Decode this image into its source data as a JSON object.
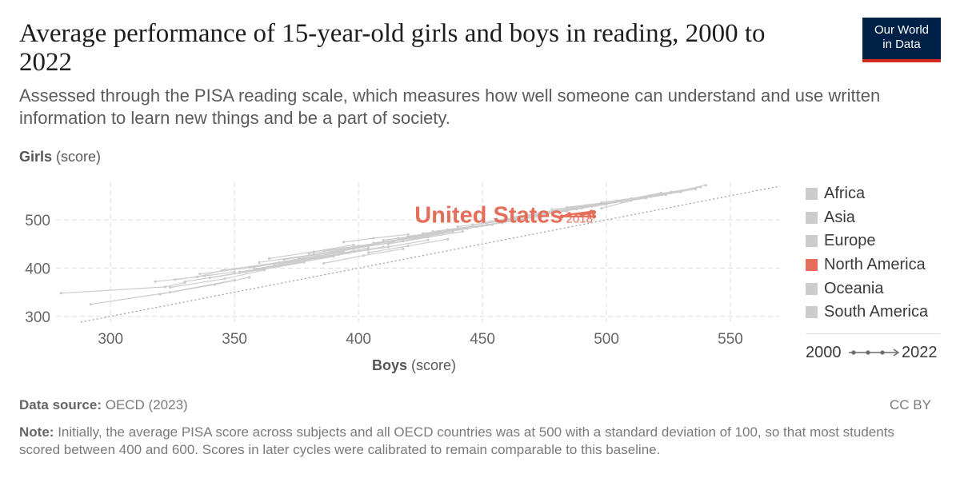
{
  "title": "Average performance of 15-year-old girls and boys in reading, 2000 to 2022",
  "subtitle": "Assessed through the PISA reading scale, which measures how well someone can understand and use written information to learn new things and be a part of society.",
  "logo": {
    "line1": "Our World",
    "line2": "in Data"
  },
  "y_axis": {
    "label_bold": "Girls",
    "label_unit": "(score)"
  },
  "x_axis": {
    "label_bold": "Boys",
    "label_unit": "(score)"
  },
  "legend": [
    {
      "label": "Africa",
      "color": "#cccccc"
    },
    {
      "label": "Asia",
      "color": "#cccccc"
    },
    {
      "label": "Europe",
      "color": "#cccccc"
    },
    {
      "label": "North America",
      "color": "#e56e5a"
    },
    {
      "label": "Oceania",
      "color": "#cccccc"
    },
    {
      "label": "South America",
      "color": "#cccccc"
    }
  ],
  "time_legend": {
    "start": "2000",
    "end": "2022"
  },
  "footer": {
    "source_label": "Data source:",
    "source_text": "OECD (2023)",
    "license": "CC BY",
    "note_label": "Note:",
    "note_text": "Initially, the average PISA score across subjects and all OECD countries was at 500 with a standard deviation of 100, so that most students scored between 400 and 600. Scores in later cycles were calibrated to remain comparable to this baseline."
  },
  "colors": {
    "highlight": "#e56e5a",
    "background_series": "#cccccc",
    "grid": "#dddddd"
  },
  "chart_data": {
    "type": "scatter",
    "xlabel": "Boys (score)",
    "ylabel": "Girls (score)",
    "xlim": [
      278,
      570
    ],
    "ylim": [
      288,
      578
    ],
    "x_ticks": [
      300,
      350,
      400,
      450,
      500,
      550
    ],
    "y_ticks": [
      300,
      400,
      500
    ],
    "grid": true,
    "legend_position": "right",
    "reference_line": "y = x",
    "highlight": {
      "name": "United States",
      "region": "North America",
      "end_label": "2018",
      "points": [
        {
          "x": 490,
          "y": 510
        },
        {
          "x": 495,
          "y": 516
        },
        {
          "x": 493,
          "y": 513
        },
        {
          "x": 485,
          "y": 512
        },
        {
          "x": 482,
          "y": 507
        },
        {
          "x": 495,
          "y": 507
        },
        {
          "x": 494,
          "y": 517
        },
        {
          "x": 485,
          "y": 511
        }
      ]
    },
    "background_series": [
      [
        [
          280,
          348
        ],
        [
          322,
          361
        ],
        [
          330,
          370
        ]
      ],
      [
        [
          292,
          325
        ],
        [
          324,
          350
        ],
        [
          350,
          375
        ]
      ],
      [
        [
          318,
          372
        ],
        [
          335,
          382
        ],
        [
          345,
          395
        ]
      ],
      [
        [
          320,
          346
        ],
        [
          342,
          366
        ],
        [
          356,
          381
        ]
      ],
      [
        [
          324,
          360
        ],
        [
          346,
          378
        ],
        [
          362,
          396
        ]
      ],
      [
        [
          330,
          372
        ],
        [
          352,
          390
        ],
        [
          368,
          404
        ]
      ],
      [
        [
          336,
          388
        ],
        [
          358,
          402
        ],
        [
          374,
          416
        ]
      ],
      [
        [
          340,
          380
        ],
        [
          362,
          398
        ],
        [
          378,
          412
        ]
      ],
      [
        [
          346,
          396
        ],
        [
          368,
          412
        ],
        [
          384,
          426
        ]
      ],
      [
        [
          352,
          392
        ],
        [
          374,
          410
        ],
        [
          390,
          424
        ]
      ],
      [
        [
          356,
          402
        ],
        [
          378,
          420
        ],
        [
          394,
          434
        ]
      ],
      [
        [
          360,
          412
        ],
        [
          382,
          428
        ],
        [
          398,
          442
        ]
      ],
      [
        [
          366,
          408
        ],
        [
          388,
          424
        ],
        [
          404,
          438
        ]
      ],
      [
        [
          370,
          418
        ],
        [
          392,
          434
        ],
        [
          408,
          450
        ]
      ],
      [
        [
          376,
          422
        ],
        [
          398,
          440
        ],
        [
          414,
          454
        ]
      ],
      [
        [
          380,
          430
        ],
        [
          402,
          446
        ],
        [
          418,
          460
        ]
      ],
      [
        [
          386,
          436
        ],
        [
          408,
          452
        ],
        [
          424,
          466
        ]
      ],
      [
        [
          390,
          428
        ],
        [
          412,
          444
        ],
        [
          428,
          458
        ]
      ],
      [
        [
          396,
          440
        ],
        [
          418,
          456
        ],
        [
          434,
          472
        ]
      ],
      [
        [
          400,
          446
        ],
        [
          422,
          462
        ],
        [
          438,
          476
        ]
      ],
      [
        [
          406,
          452
        ],
        [
          428,
          468
        ],
        [
          444,
          482
        ]
      ],
      [
        [
          410,
          458
        ],
        [
          432,
          472
        ],
        [
          448,
          486
        ]
      ],
      [
        [
          416,
          462
        ],
        [
          438,
          478
        ],
        [
          454,
          490
        ]
      ],
      [
        [
          420,
          466
        ],
        [
          442,
          482
        ],
        [
          458,
          494
        ]
      ],
      [
        [
          426,
          472
        ],
        [
          448,
          486
        ],
        [
          464,
          500
        ]
      ],
      [
        [
          430,
          476
        ],
        [
          452,
          490
        ],
        [
          468,
          504
        ]
      ],
      [
        [
          436,
          480
        ],
        [
          458,
          494
        ],
        [
          474,
          508
        ]
      ],
      [
        [
          440,
          486
        ],
        [
          462,
          500
        ],
        [
          478,
          514
        ]
      ],
      [
        [
          446,
          490
        ],
        [
          468,
          506
        ],
        [
          484,
          518
        ]
      ],
      [
        [
          450,
          494
        ],
        [
          472,
          510
        ],
        [
          488,
          522
        ]
      ],
      [
        [
          456,
          500
        ],
        [
          478,
          514
        ],
        [
          494,
          528
        ]
      ],
      [
        [
          462,
          506
        ],
        [
          484,
          520
        ],
        [
          500,
          532
        ]
      ],
      [
        [
          468,
          510
        ],
        [
          490,
          524
        ],
        [
          506,
          538
        ]
      ],
      [
        [
          474,
          516
        ],
        [
          496,
          530
        ],
        [
          512,
          544
        ]
      ],
      [
        [
          480,
          520
        ],
        [
          502,
          536
        ],
        [
          518,
          548
        ]
      ],
      [
        [
          486,
          526
        ],
        [
          508,
          540
        ],
        [
          524,
          552
        ]
      ],
      [
        [
          492,
          530
        ],
        [
          514,
          546
        ],
        [
          530,
          558
        ]
      ],
      [
        [
          498,
          536
        ],
        [
          520,
          550
        ],
        [
          536,
          564
        ]
      ],
      [
        [
          504,
          540
        ],
        [
          526,
          556
        ],
        [
          540,
          572
        ]
      ],
      [
        [
          478,
          522
        ],
        [
          500,
          534
        ],
        [
          516,
          545
        ]
      ],
      [
        [
          484,
          526
        ],
        [
          506,
          540
        ],
        [
          522,
          556
        ]
      ],
      [
        [
          510,
          544
        ],
        [
          526,
          558
        ],
        [
          538,
          568
        ]
      ],
      [
        [
          498,
          524
        ],
        [
          510,
          540
        ],
        [
          522,
          552
        ]
      ],
      [
        [
          380,
          420
        ],
        [
          396,
          432
        ],
        [
          410,
          444
        ]
      ],
      [
        [
          386,
          410
        ],
        [
          402,
          426
        ],
        [
          418,
          440
        ]
      ],
      [
        [
          372,
          414
        ],
        [
          390,
          428
        ],
        [
          404,
          442
        ]
      ],
      [
        [
          358,
          398
        ],
        [
          376,
          414
        ],
        [
          392,
          428
        ]
      ],
      [
        [
          364,
          420
        ],
        [
          382,
          434
        ],
        [
          398,
          448
        ]
      ],
      [
        [
          394,
          454
        ],
        [
          406,
          462
        ],
        [
          420,
          470
        ]
      ],
      [
        [
          326,
          376
        ],
        [
          338,
          384
        ],
        [
          350,
          392
        ]
      ],
      [
        [
          404,
          432
        ],
        [
          420,
          446
        ],
        [
          436,
          460
        ]
      ],
      [
        [
          412,
          450
        ],
        [
          428,
          464
        ],
        [
          442,
          476
        ]
      ]
    ]
  }
}
